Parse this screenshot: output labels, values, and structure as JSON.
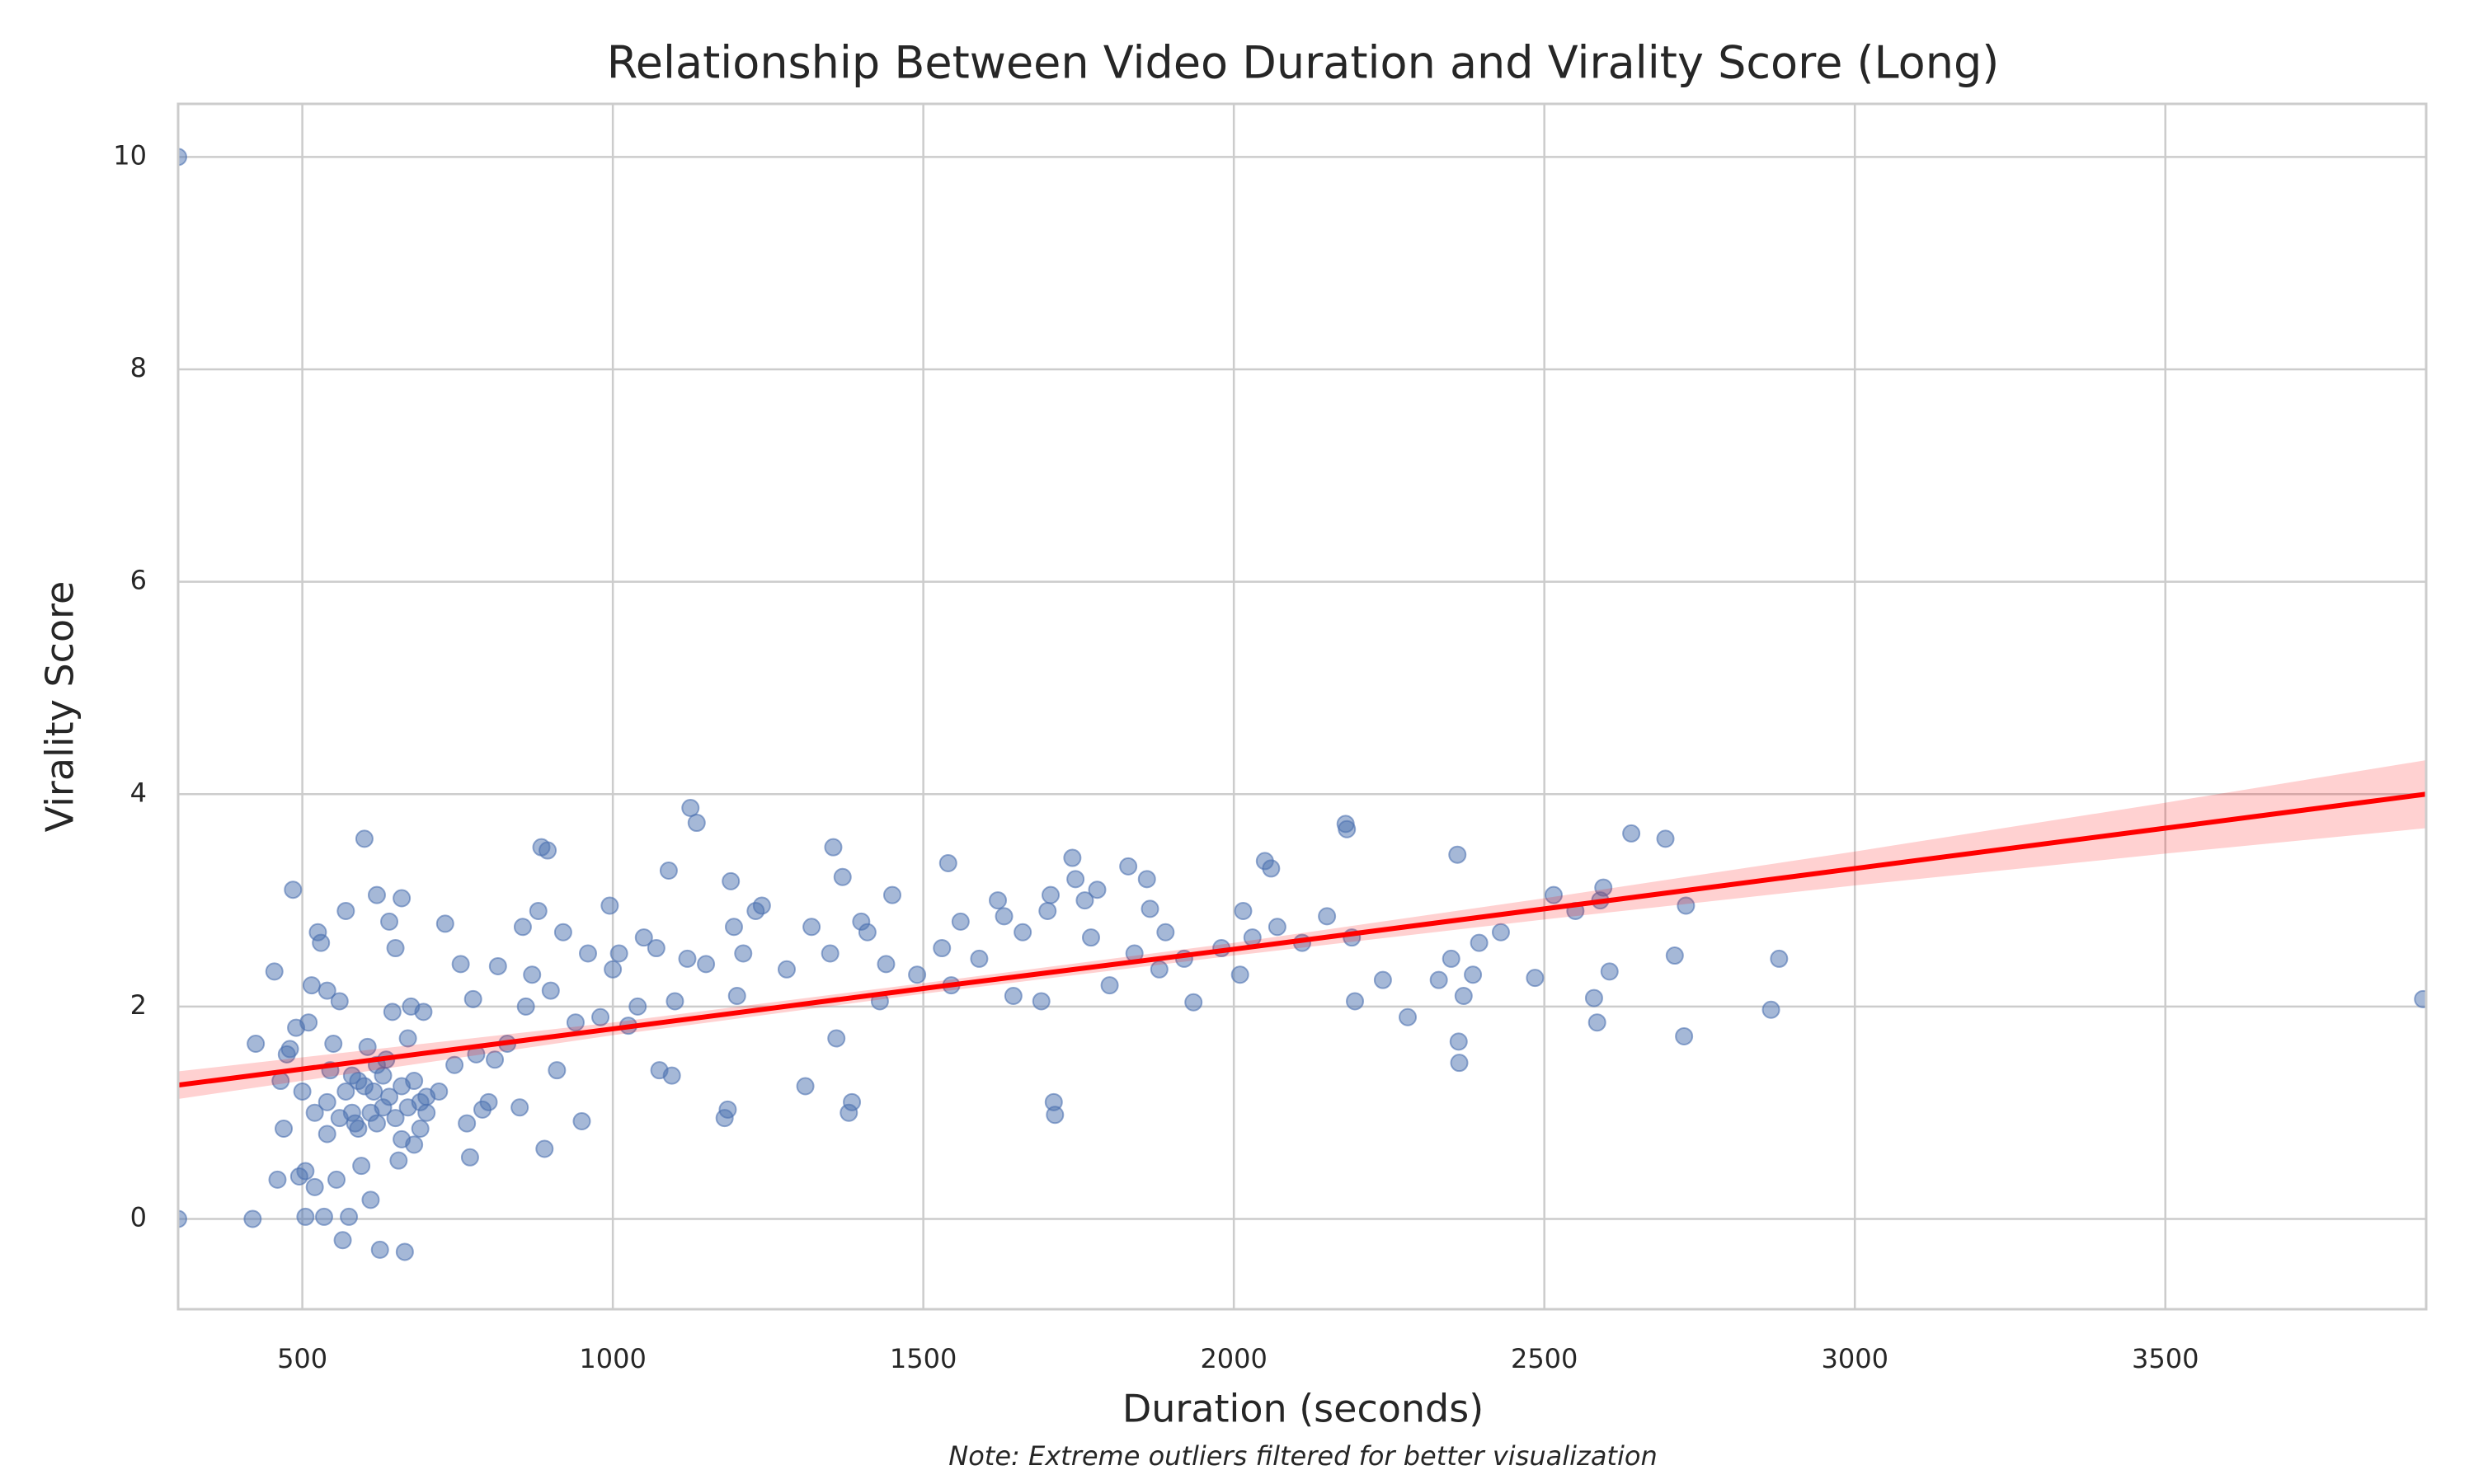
{
  "chart_data": {
    "type": "scatter",
    "title": "Relationship Between Video Duration and Virality Score (Long)",
    "x_label": "Duration (seconds)",
    "y_label": "Virality Score",
    "note": "Note: Extreme outliers filtered for better visualization",
    "color": "#4c72b0",
    "x": [
      300,
      300,
      420,
      425,
      455,
      460,
      465,
      470,
      475,
      480,
      485,
      490,
      495,
      500,
      505,
      505,
      510,
      515,
      520,
      525,
      530,
      535,
      540,
      545,
      550,
      555,
      560,
      565,
      570,
      575,
      580,
      585,
      590,
      595,
      600,
      605,
      610,
      615,
      620,
      625,
      630,
      635,
      640,
      645,
      650,
      655,
      660,
      665,
      670,
      675,
      680,
      690,
      695,
      700,
      520,
      540,
      560,
      570,
      590,
      600,
      610,
      620,
      630,
      640,
      650,
      660,
      670,
      680,
      690,
      700,
      540,
      580,
      620,
      660,
      720,
      730,
      745,
      755,
      765,
      770,
      775,
      780,
      790,
      800,
      810,
      815,
      830,
      850,
      855,
      860,
      870,
      880,
      885,
      890,
      895,
      900,
      910,
      920,
      940,
      950,
      960,
      980,
      995,
      1000,
      1010,
      1025,
      1040,
      1050,
      1070,
      1075,
      1090,
      1095,
      1100,
      1120,
      1125,
      1135,
      1150,
      1180,
      1185,
      1190,
      1195,
      1200,
      1210,
      1230,
      1240,
      1280,
      1310,
      1320,
      1350,
      1355,
      1360,
      1370,
      1380,
      1385,
      1400,
      1410,
      1430,
      1440,
      1450,
      1490,
      1530,
      1540,
      1545,
      1560,
      1590,
      1620,
      1630,
      1645,
      1660,
      1690,
      1700,
      1705,
      1710,
      1712,
      1740,
      1745,
      1760,
      1770,
      1780,
      1800,
      1830,
      1840,
      1860,
      1865,
      1880,
      1890,
      1920,
      1935,
      1980,
      2010,
      2015,
      2030,
      2050,
      2060,
      2070,
      2110,
      2150,
      2180,
      2182,
      2190,
      2195,
      2240,
      2280,
      2330,
      2350,
      2360,
      2362,
      2363,
      2370,
      2385,
      2395,
      2430,
      2485,
      2515,
      2550,
      2580,
      2585,
      2590,
      2595,
      2605,
      2640,
      2695,
      2710,
      2725,
      2728,
      2865,
      2878,
      3915
    ],
    "y": [
      10,
      0,
      0,
      1.65,
      2.33,
      0.37,
      1.3,
      0.85,
      1.55,
      1.6,
      3.1,
      1.8,
      0.4,
      1.2,
      0.02,
      0.45,
      1.85,
      2.2,
      0.3,
      2.7,
      2.6,
      0.02,
      2.15,
      1.4,
      1.65,
      0.37,
      2.05,
      -0.2,
      2.9,
      0.02,
      1.0,
      0.9,
      1.3,
      0.5,
      3.58,
      1.62,
      0.18,
      1.2,
      3.05,
      -0.29,
      1.05,
      1.5,
      2.8,
      1.95,
      2.55,
      0.55,
      3.02,
      -0.31,
      1.7,
      2.0,
      0.7,
      1.1,
      1.95,
      1.0,
      1.0,
      1.1,
      0.95,
      1.2,
      0.85,
      1.25,
      1.0,
      0.9,
      1.35,
      1.15,
      0.95,
      1.25,
      1.05,
      1.3,
      0.85,
      1.15,
      0.8,
      1.35,
      1.45,
      0.75,
      1.2,
      2.78,
      1.45,
      2.4,
      0.9,
      0.58,
      2.07,
      1.55,
      1.03,
      1.1,
      1.5,
      2.38,
      1.65,
      1.05,
      2.75,
      2.0,
      2.3,
      2.9,
      3.5,
      0.66,
      3.47,
      2.15,
      1.4,
      2.7,
      1.85,
      0.92,
      2.5,
      1.9,
      2.95,
      2.35,
      2.5,
      1.82,
      2.0,
      2.65,
      2.55,
      1.4,
      3.28,
      1.35,
      2.05,
      2.45,
      3.87,
      3.73,
      2.4,
      0.95,
      1.03,
      3.18,
      2.75,
      2.1,
      2.5,
      2.9,
      2.95,
      2.35,
      1.25,
      2.75,
      2.5,
      3.5,
      1.7,
      3.22,
      1.0,
      1.1,
      2.8,
      2.7,
      2.05,
      2.4,
      3.05,
      2.3,
      2.55,
      3.35,
      2.2,
      2.8,
      2.45,
      3.0,
      2.85,
      2.1,
      2.7,
      2.05,
      2.9,
      3.05,
      1.1,
      0.98,
      3.4,
      3.2,
      3.0,
      2.65,
      3.1,
      2.2,
      3.32,
      2.5,
      3.2,
      2.92,
      2.35,
      2.7,
      2.45,
      2.04,
      2.55,
      2.3,
      2.9,
      2.65,
      3.37,
      3.3,
      2.75,
      2.6,
      2.85,
      3.72,
      3.67,
      2.65,
      2.05,
      2.25,
      1.9,
      2.25,
      2.45,
      3.43,
      1.67,
      1.47,
      2.1,
      2.3,
      2.6,
      2.7,
      2.27,
      3.05,
      2.9,
      2.08,
      1.85,
      3.0,
      3.12,
      2.33,
      3.63,
      3.58,
      2.48,
      1.72,
      2.95,
      1.97,
      2.45,
      2.07
    ],
    "trend": {
      "color": "#ff0000",
      "x": [
        300,
        1000,
        1500,
        2000,
        2500,
        3000,
        3500,
        3920
      ],
      "y": [
        1.26,
        1.79,
        2.17,
        2.54,
        2.92,
        3.3,
        3.68,
        4.0
      ],
      "lower": [
        1.13,
        1.73,
        2.12,
        2.48,
        2.82,
        3.14,
        3.44,
        3.68
      ],
      "upper": [
        1.39,
        1.85,
        2.22,
        2.6,
        3.02,
        3.46,
        3.92,
        4.32
      ]
    },
    "xlim": [
      300,
      3920
    ],
    "xticks": [
      500,
      1000,
      1500,
      2000,
      2500,
      3000,
      3500
    ],
    "ylim": [
      -0.85,
      10.5
    ],
    "yticks": [
      0,
      2,
      4,
      6,
      8,
      10
    ],
    "grid": true
  }
}
